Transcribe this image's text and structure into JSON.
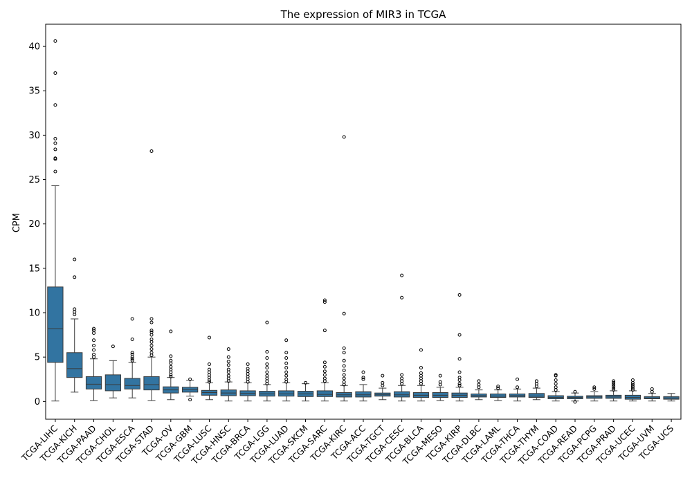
{
  "chart_data": {
    "type": "box",
    "title": "The expression of MIR3 in TCGA",
    "xlabel": "",
    "ylabel": "CPM",
    "ylim": [
      -2,
      42.5
    ],
    "yticks": [
      0,
      5,
      10,
      15,
      20,
      25,
      30,
      35,
      40
    ],
    "grid": false,
    "legend": "none",
    "box_color": "#3274a1",
    "categories": [
      "TCGA-LIHC",
      "TCGA-KICH",
      "TCGA-PAAD",
      "TCGA-CHOL",
      "TCGA-ESCA",
      "TCGA-STAD",
      "TCGA-OV",
      "TCGA-GBM",
      "TCGA-LUSC",
      "TCGA-HNSC",
      "TCGA-BRCA",
      "TCGA-LGG",
      "TCGA-LUAD",
      "TCGA-SKCM",
      "TCGA-SARC",
      "TCGA-KIRC",
      "TCGA-ACC",
      "TCGA-TGCT",
      "TCGA-CESC",
      "TCGA-BLCA",
      "TCGA-MESO",
      "TCGA-KIRP",
      "TCGA-DLBC",
      "TCGA-LAML",
      "TCGA-THCA",
      "TCGA-THYM",
      "TCGA-COAD",
      "TCGA-READ",
      "TCGA-PCPG",
      "TCGA-PRAD",
      "TCGA-UCEC",
      "TCGA-UVM",
      "TCGA-UCS"
    ],
    "boxes": [
      {
        "whislo": 0.05,
        "q1": 4.4,
        "med": 8.2,
        "q3": 12.9,
        "whishi": 24.3,
        "fliers": [
          25.9,
          27.3,
          27.4,
          28.4,
          29.1,
          29.6,
          33.4,
          37.0,
          40.6
        ]
      },
      {
        "whislo": 1.05,
        "q1": 2.7,
        "med": 3.7,
        "q3": 5.5,
        "whishi": 9.3,
        "fliers": [
          9.8,
          10.1,
          10.4,
          14.0,
          16.0
        ]
      },
      {
        "whislo": 0.1,
        "q1": 1.4,
        "med": 1.95,
        "q3": 2.8,
        "whishi": 4.8,
        "fliers": [
          5.0,
          5.3,
          5.8,
          6.3,
          6.9,
          7.7,
          8.0,
          8.2
        ]
      },
      {
        "whislo": 0.4,
        "q1": 1.2,
        "med": 1.9,
        "q3": 3.0,
        "whishi": 4.6,
        "fliers": [
          6.2
        ]
      },
      {
        "whislo": 0.4,
        "q1": 1.4,
        "med": 1.8,
        "q3": 2.6,
        "whishi": 4.4,
        "fliers": [
          4.6,
          4.8,
          5.0,
          5.3,
          5.5,
          7.0,
          9.3
        ]
      },
      {
        "whislo": 0.1,
        "q1": 1.3,
        "med": 1.9,
        "q3": 2.8,
        "whishi": 5.0,
        "fliers": [
          5.2,
          5.5,
          5.9,
          6.3,
          6.7,
          7.0,
          7.5,
          7.8,
          8.0,
          8.9,
          9.3,
          28.2
        ]
      },
      {
        "whislo": 0.2,
        "q1": 0.95,
        "med": 1.3,
        "q3": 1.65,
        "whishi": 2.7,
        "fliers": [
          2.8,
          3.0,
          3.3,
          3.6,
          3.9,
          4.3,
          4.6,
          5.1,
          7.9
        ]
      },
      {
        "whislo": 0.6,
        "q1": 1.05,
        "med": 1.35,
        "q3": 1.6,
        "whishi": 2.4,
        "fliers": [
          0.2,
          2.5
        ]
      },
      {
        "whislo": 0.2,
        "q1": 0.7,
        "med": 1.0,
        "q3": 1.25,
        "whishi": 2.1,
        "fliers": [
          2.2,
          2.4,
          2.7,
          3.0,
          3.3,
          3.6,
          4.2,
          7.2
        ]
      },
      {
        "whislo": 0.05,
        "q1": 0.65,
        "med": 0.95,
        "q3": 1.3,
        "whishi": 2.2,
        "fliers": [
          2.3,
          2.6,
          2.9,
          3.3,
          3.6,
          4.1,
          4.5,
          5.0,
          5.9
        ]
      },
      {
        "whislo": 0.05,
        "q1": 0.65,
        "med": 0.9,
        "q3": 1.2,
        "whishi": 2.1,
        "fliers": [
          2.2,
          2.5,
          2.8,
          3.1,
          3.4,
          3.7,
          4.2
        ]
      },
      {
        "whislo": 0.05,
        "q1": 0.6,
        "med": 0.85,
        "q3": 1.15,
        "whishi": 1.9,
        "fliers": [
          2.0,
          2.3,
          2.6,
          2.9,
          3.3,
          3.8,
          4.2,
          4.9,
          5.6,
          8.9
        ]
      },
      {
        "whislo": 0.05,
        "q1": 0.6,
        "med": 0.85,
        "q3": 1.2,
        "whishi": 2.1,
        "fliers": [
          2.2,
          2.5,
          2.9,
          3.3,
          3.8,
          4.3,
          4.9,
          5.5,
          6.9
        ]
      },
      {
        "whislo": 0.05,
        "q1": 0.55,
        "med": 0.85,
        "q3": 1.15,
        "whishi": 2.0,
        "fliers": [
          2.1
        ]
      },
      {
        "whislo": 0.05,
        "q1": 0.55,
        "med": 0.8,
        "q3": 1.2,
        "whishi": 2.1,
        "fliers": [
          2.3,
          2.6,
          3.0,
          3.4,
          3.9,
          4.4,
          8.0,
          11.2,
          11.4
        ]
      },
      {
        "whislo": 0.05,
        "q1": 0.5,
        "med": 0.75,
        "q3": 1.0,
        "whishi": 1.8,
        "fliers": [
          1.9,
          2.2,
          2.6,
          3.0,
          3.5,
          4.0,
          4.6,
          5.5,
          6.0,
          9.9,
          29.8
        ]
      },
      {
        "whislo": 0.05,
        "q1": 0.5,
        "med": 0.75,
        "q3": 1.1,
        "whishi": 1.9,
        "fliers": [
          2.5,
          2.7,
          3.3
        ]
      },
      {
        "whislo": 0.2,
        "q1": 0.6,
        "med": 0.75,
        "q3": 0.95,
        "whishi": 1.5,
        "fliers": [
          1.8,
          2.1,
          2.9
        ]
      },
      {
        "whislo": 0.05,
        "q1": 0.5,
        "med": 0.75,
        "q3": 1.1,
        "whishi": 1.8,
        "fliers": [
          2.0,
          2.3,
          2.6,
          3.0,
          11.7,
          14.2
        ]
      },
      {
        "whislo": 0.05,
        "q1": 0.45,
        "med": 0.7,
        "q3": 1.0,
        "whishi": 1.8,
        "fliers": [
          2.0,
          2.3,
          2.6,
          2.9,
          3.2,
          3.8,
          5.8
        ]
      },
      {
        "whislo": 0.1,
        "q1": 0.45,
        "med": 0.7,
        "q3": 1.0,
        "whishi": 1.6,
        "fliers": [
          1.9,
          2.2,
          2.9
        ]
      },
      {
        "whislo": 0.05,
        "q1": 0.45,
        "med": 0.7,
        "q3": 0.95,
        "whishi": 1.6,
        "fliers": [
          1.8,
          2.0,
          2.4,
          2.7,
          3.3,
          4.8,
          7.5,
          12.0
        ]
      },
      {
        "whislo": 0.2,
        "q1": 0.5,
        "med": 0.65,
        "q3": 0.85,
        "whishi": 1.3,
        "fliers": [
          1.6,
          1.9,
          2.3
        ]
      },
      {
        "whislo": 0.1,
        "q1": 0.45,
        "med": 0.6,
        "q3": 0.85,
        "whishi": 1.3,
        "fliers": [
          1.5,
          1.7
        ]
      },
      {
        "whislo": 0.05,
        "q1": 0.5,
        "med": 0.65,
        "q3": 0.85,
        "whishi": 1.4,
        "fliers": [
          1.6,
          2.5
        ]
      },
      {
        "whislo": 0.2,
        "q1": 0.45,
        "med": 0.6,
        "q3": 0.9,
        "whishi": 1.5,
        "fliers": [
          1.7,
          2.0,
          2.3
        ]
      },
      {
        "whislo": 0.05,
        "q1": 0.3,
        "med": 0.45,
        "q3": 0.65,
        "whishi": 1.1,
        "fliers": [
          1.3,
          1.6,
          2.0,
          2.4,
          2.9,
          3.0
        ]
      },
      {
        "whislo": 0.05,
        "q1": 0.3,
        "med": 0.45,
        "q3": 0.6,
        "whishi": 0.95,
        "fliers": [
          -0.05,
          1.1
        ]
      },
      {
        "whislo": 0.05,
        "q1": 0.35,
        "med": 0.5,
        "q3": 0.65,
        "whishi": 1.1,
        "fliers": [
          1.4,
          1.6
        ]
      },
      {
        "whislo": 0.05,
        "q1": 0.35,
        "med": 0.5,
        "q3": 0.7,
        "whishi": 1.2,
        "fliers": [
          1.3,
          1.5,
          1.7,
          1.9,
          2.1,
          2.3
        ]
      },
      {
        "whislo": 0.05,
        "q1": 0.25,
        "med": 0.45,
        "q3": 0.7,
        "whishi": 1.2,
        "fliers": [
          1.3,
          1.5,
          1.7,
          1.9,
          2.1,
          2.4
        ]
      },
      {
        "whislo": 0.05,
        "q1": 0.3,
        "med": 0.4,
        "q3": 0.55,
        "whishi": 0.9,
        "fliers": [
          1.1,
          1.4
        ]
      },
      {
        "whislo": 0.05,
        "q1": 0.25,
        "med": 0.4,
        "q3": 0.55,
        "whishi": 0.9,
        "fliers": []
      }
    ]
  }
}
